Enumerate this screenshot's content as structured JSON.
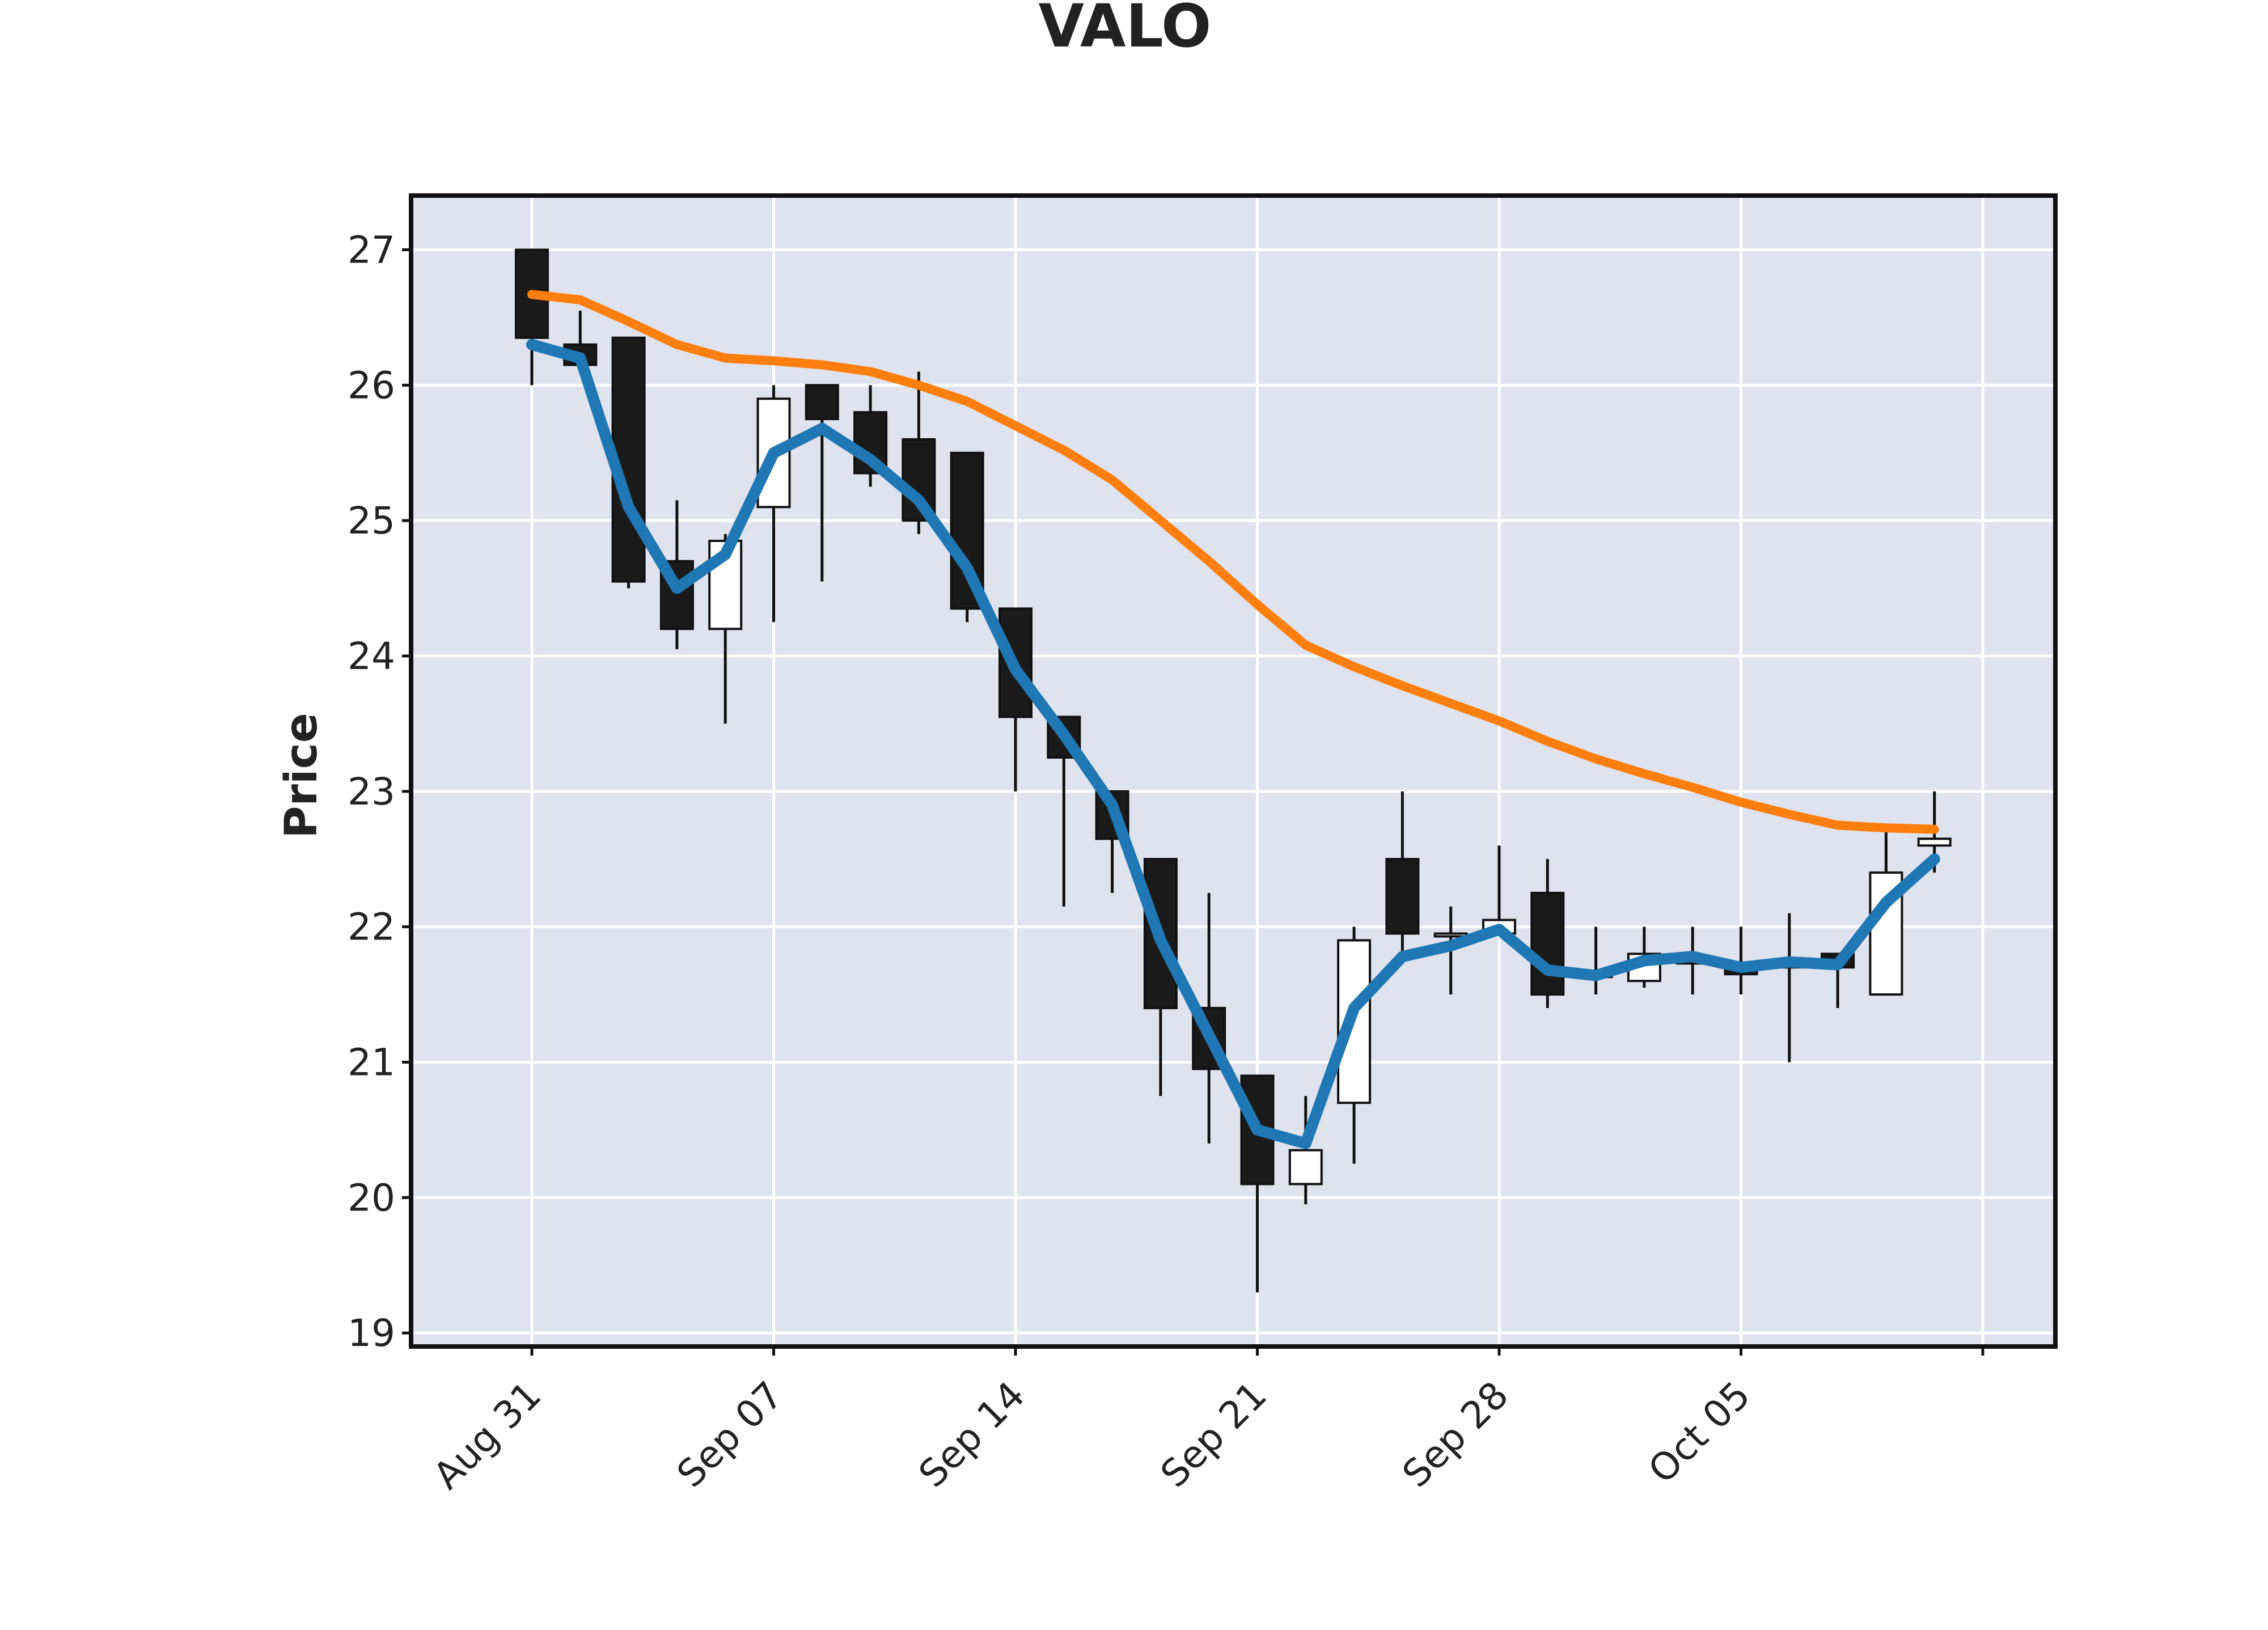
{
  "chart_data": {
    "type": "candlestick",
    "title": "VALO",
    "xlabel": "",
    "ylabel": "Price",
    "ylim": [
      18.9,
      27.4
    ],
    "yticks": [
      19,
      20,
      21,
      22,
      23,
      24,
      25,
      26,
      27
    ],
    "xtick_labels": [
      {
        "date": "2021-08-31",
        "label": "Aug 31"
      },
      {
        "date": "2021-09-07",
        "label": "Sep 07"
      },
      {
        "date": "2021-09-14",
        "label": "Sep 14"
      },
      {
        "date": "2021-09-21",
        "label": "Sep 21"
      },
      {
        "date": "2021-09-28",
        "label": "Sep 28"
      },
      {
        "date": "2021-10-05",
        "label": "Oct 05"
      }
    ],
    "grid": true,
    "colors": {
      "background": "#dfe3ef",
      "grid": "#ffffff",
      "up_candle": "#ffffff",
      "down_candle": "#1a1a1a",
      "ma_short": "#1f77b4",
      "ma_long": "#ff7f0e"
    },
    "candles": [
      {
        "date": "2021-08-31",
        "open": 27.0,
        "high": 27.0,
        "low": 26.0,
        "close": 26.35
      },
      {
        "date": "2021-09-01",
        "open": 26.3,
        "high": 26.55,
        "low": 26.1,
        "close": 26.15
      },
      {
        "date": "2021-09-02",
        "open": 26.35,
        "high": 26.35,
        "low": 24.5,
        "close": 24.55
      },
      {
        "date": "2021-09-03",
        "open": 24.7,
        "high": 25.15,
        "low": 24.05,
        "close": 24.2
      },
      {
        "date": "2021-09-06",
        "open": 24.2,
        "high": 24.9,
        "low": 23.5,
        "close": 24.85
      },
      {
        "date": "2021-09-07",
        "open": 25.1,
        "high": 26.0,
        "low": 24.25,
        "close": 25.9
      },
      {
        "date": "2021-09-08",
        "open": 26.0,
        "high": 26.0,
        "low": 24.55,
        "close": 25.75
      },
      {
        "date": "2021-09-09",
        "open": 25.8,
        "high": 26.0,
        "low": 25.25,
        "close": 25.35
      },
      {
        "date": "2021-09-10",
        "open": 25.6,
        "high": 26.1,
        "low": 24.9,
        "close": 25.0
      },
      {
        "date": "2021-09-13",
        "open": 25.5,
        "high": 25.5,
        "low": 24.25,
        "close": 24.35
      },
      {
        "date": "2021-09-14",
        "open": 24.35,
        "high": 24.35,
        "low": 23.0,
        "close": 23.55
      },
      {
        "date": "2021-09-15",
        "open": 23.55,
        "high": 23.55,
        "low": 22.15,
        "close": 23.25
      },
      {
        "date": "2021-09-16",
        "open": 23.0,
        "high": 23.0,
        "low": 22.25,
        "close": 22.65
      },
      {
        "date": "2021-09-17",
        "open": 22.5,
        "high": 22.5,
        "low": 20.75,
        "close": 21.4
      },
      {
        "date": "2021-09-20",
        "open": 21.4,
        "high": 22.25,
        "low": 20.4,
        "close": 20.95
      },
      {
        "date": "2021-09-21",
        "open": 20.9,
        "high": 20.9,
        "low": 19.3,
        "close": 20.1
      },
      {
        "date": "2021-09-22",
        "open": 20.1,
        "high": 20.75,
        "low": 19.95,
        "close": 20.35
      },
      {
        "date": "2021-09-23",
        "open": 20.7,
        "high": 22.0,
        "low": 20.25,
        "close": 21.9
      },
      {
        "date": "2021-09-24",
        "open": 22.5,
        "high": 23.0,
        "low": 21.8,
        "close": 21.95
      },
      {
        "date": "2021-09-27",
        "open": 21.95,
        "high": 22.15,
        "low": 21.5,
        "close": 21.95
      },
      {
        "date": "2021-09-28",
        "open": 21.95,
        "high": 22.6,
        "low": 21.95,
        "close": 22.05
      },
      {
        "date": "2021-09-29",
        "open": 22.25,
        "high": 22.5,
        "low": 21.4,
        "close": 21.5
      },
      {
        "date": "2021-09-30",
        "open": 21.65,
        "high": 22.0,
        "low": 21.5,
        "close": 21.65
      },
      {
        "date": "2021-10-01",
        "open": 21.6,
        "high": 22.0,
        "low": 21.55,
        "close": 21.8
      },
      {
        "date": "2021-10-04",
        "open": 21.75,
        "high": 22.0,
        "low": 21.5,
        "close": 21.75
      },
      {
        "date": "2021-10-05",
        "open": 21.7,
        "high": 22.0,
        "low": 21.5,
        "close": 21.65
      },
      {
        "date": "2021-10-06",
        "open": 21.7,
        "high": 22.1,
        "low": 21.0,
        "close": 21.75
      },
      {
        "date": "2021-10-07",
        "open": 21.8,
        "high": 21.8,
        "low": 21.4,
        "close": 21.7
      },
      {
        "date": "2021-10-08",
        "open": 21.5,
        "high": 22.7,
        "low": 21.5,
        "close": 22.4
      },
      {
        "date": "2021-10-11",
        "open": 22.6,
        "high": 23.0,
        "low": 22.4,
        "close": 22.65
      }
    ],
    "series": [
      {
        "values": [
          26.3,
          26.2,
          25.1,
          24.5,
          24.75,
          25.5,
          25.68,
          25.45,
          25.15,
          24.65,
          23.9,
          23.42,
          22.9,
          21.9,
          21.2,
          20.5,
          20.4,
          21.4,
          21.78,
          21.86,
          21.98,
          21.68,
          21.64,
          21.75,
          21.78,
          21.7,
          21.74,
          21.72,
          22.18,
          22.5
        ]
      },
      {
        "values": [
          26.67,
          26.63,
          26.47,
          26.3,
          26.2,
          26.18,
          26.15,
          26.1,
          26.0,
          25.88,
          25.7,
          25.52,
          25.3,
          25.0,
          24.7,
          24.38,
          24.08,
          23.92,
          23.78,
          23.65,
          23.52,
          23.37,
          23.24,
          23.13,
          23.03,
          22.92,
          22.83,
          22.75,
          22.73,
          22.72
        ]
      }
    ]
  }
}
